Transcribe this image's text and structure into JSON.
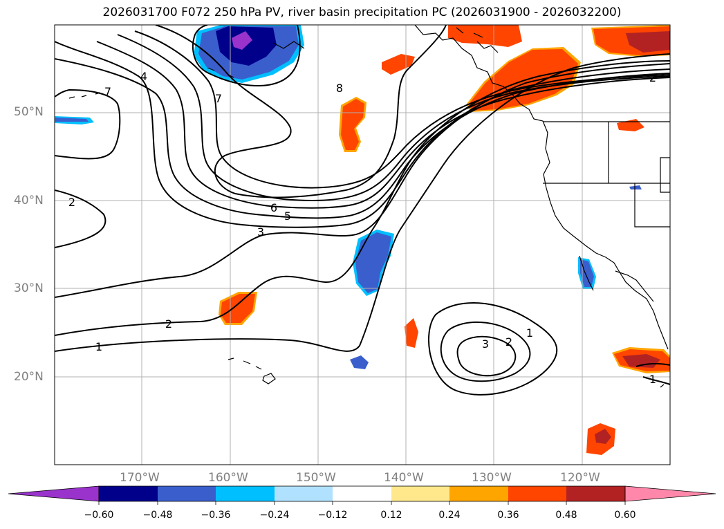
{
  "title": "2026031700 F072 250 hPa PV, river basin precipitation PC (2026031900 - 2026032200)",
  "latitude_labels": [
    "50°N",
    "40°N",
    "30°N",
    "20°N"
  ],
  "longitude_labels": [
    "170°W",
    "160°W",
    "150°W",
    "140°W",
    "130°W",
    "120°W"
  ],
  "contour_labels": [
    "7",
    "4",
    "7",
    "8",
    "2",
    "2",
    "6",
    "5",
    "3",
    "2",
    "1",
    "1",
    "3",
    "2",
    "1"
  ],
  "colorbar": {
    "ticks": [
      "−0.60",
      "−0.48",
      "−0.36",
      "−0.24",
      "−0.12",
      "0.12",
      "0.24",
      "0.36",
      "0.48",
      "0.60"
    ],
    "colors": [
      "#9933cc",
      "#00008b",
      "#3a5fcd",
      "#00bfff",
      "#b0e2ff",
      "#ffffff",
      "#ffe88c",
      "#ffa500",
      "#ff4500",
      "#b22222",
      "#ff88aa"
    ]
  },
  "colors": {
    "positive_strong": "#ff4500",
    "positive_max": "#b22222",
    "negative_medium": "#3a5fcd",
    "negative_strong": "#00008b",
    "negative_max": "#9933cc",
    "grid": "#b0b0b0",
    "contour": "#000000"
  }
}
